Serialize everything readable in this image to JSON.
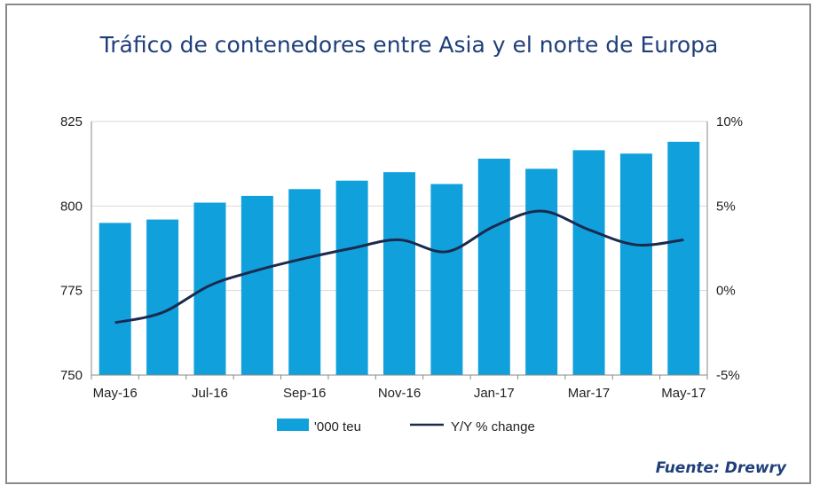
{
  "title": "Tráfico de contenedores entre Asia y el norte de Europa",
  "source": "Fuente: Drewry",
  "colors": {
    "bar": "#10a0dc",
    "line": "#1b2a4e",
    "title": "#1f3f7a"
  },
  "chart_data": {
    "type": "bar",
    "categories": [
      "May-16",
      "Jun-16",
      "Jul-16",
      "Aug-16",
      "Sep-16",
      "Oct-16",
      "Nov-16",
      "Dec-16",
      "Jan-17",
      "Feb-17",
      "Mar-17",
      "Apr-17",
      "May-17"
    ],
    "x_tick_labels": [
      "May-16",
      "Jul-16",
      "Sep-16",
      "Nov-16",
      "Jan-17",
      "Mar-17",
      "May-17"
    ],
    "series": [
      {
        "name": "'000 teu",
        "type": "bar",
        "axis": "left",
        "values": [
          795,
          796,
          801,
          803,
          805,
          807.5,
          810,
          806.5,
          814,
          811,
          816.5,
          815.5,
          819
        ]
      },
      {
        "name": "Y/Y % change",
        "type": "line",
        "axis": "right",
        "values": [
          -1.9,
          -1.3,
          0.3,
          1.2,
          1.9,
          2.5,
          3.0,
          2.3,
          3.8,
          4.7,
          3.6,
          2.7,
          3.0
        ]
      }
    ],
    "y_left": {
      "min": 750,
      "max": 825,
      "ticks": [
        "750",
        "775",
        "800",
        "825"
      ]
    },
    "y_right": {
      "min": -5,
      "max": 10,
      "ticks": [
        "-5%",
        "0%",
        "5%",
        "10%"
      ]
    },
    "legend": {
      "position": "bottom",
      "entries": [
        "'000 teu",
        "Y/Y % change"
      ]
    }
  }
}
